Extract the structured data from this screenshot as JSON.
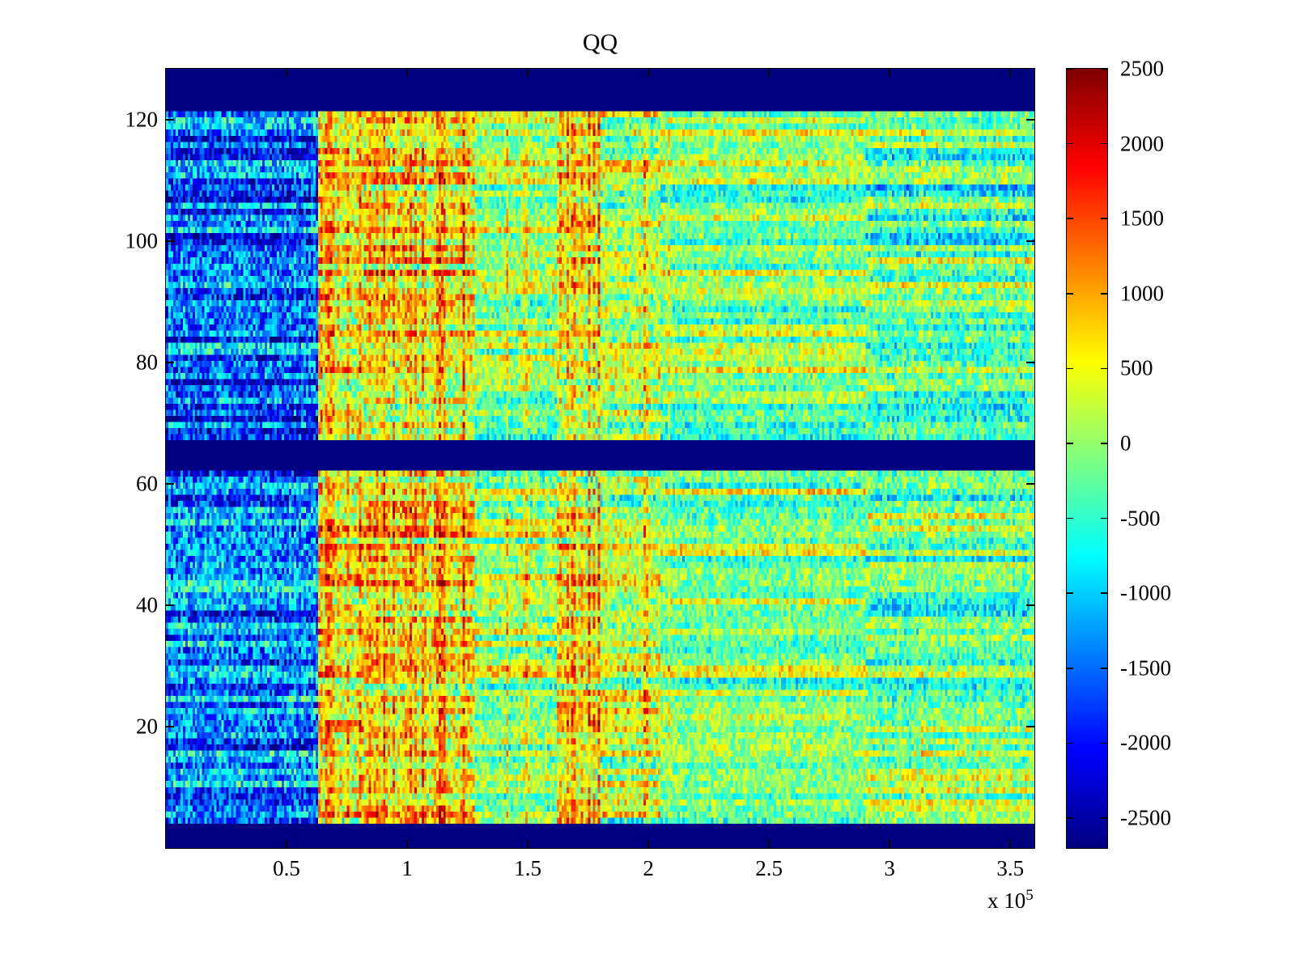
{
  "chart_data": {
    "type": "heatmap",
    "title": "QQ",
    "xlabel": "",
    "ylabel": "",
    "x_scale_label": {
      "prefix": "x 10",
      "exponent": "5"
    },
    "xlim": [
      0,
      360000
    ],
    "ylim": [
      0,
      128.4
    ],
    "clim": [
      -2700,
      2500
    ],
    "colormap": "jet",
    "legend": "none",
    "grid": false,
    "x_ticks": [
      {
        "value": 50000,
        "label": "0.5"
      },
      {
        "value": 100000,
        "label": "1"
      },
      {
        "value": 150000,
        "label": "1.5"
      },
      {
        "value": 200000,
        "label": "2"
      },
      {
        "value": 250000,
        "label": "2.5"
      },
      {
        "value": 300000,
        "label": "3"
      },
      {
        "value": 350000,
        "label": "3.5"
      }
    ],
    "y_ticks": [
      {
        "value": 20,
        "label": "20"
      },
      {
        "value": 40,
        "label": "40"
      },
      {
        "value": 60,
        "label": "60"
      },
      {
        "value": 80,
        "label": "80"
      },
      {
        "value": 100,
        "label": "100"
      },
      {
        "value": 120,
        "label": "120"
      }
    ],
    "colorbar_ticks": [
      {
        "value": 2500,
        "label": "2500"
      },
      {
        "value": 2000,
        "label": "2000"
      },
      {
        "value": 1500,
        "label": "1500"
      },
      {
        "value": 1000,
        "label": "1000"
      },
      {
        "value": 500,
        "label": "500"
      },
      {
        "value": 0,
        "label": "0"
      },
      {
        "value": -500,
        "label": "-500"
      },
      {
        "value": -1000,
        "label": "-1000"
      },
      {
        "value": -1500,
        "label": "-1500"
      },
      {
        "value": -2000,
        "label": "-2000"
      },
      {
        "value": -2500,
        "label": "-2500"
      }
    ],
    "solid_low_bands_y": [
      [
        0,
        3.7
      ],
      [
        61.7,
        67.1
      ],
      [
        121.7,
        128.4
      ]
    ],
    "x_regions": [
      {
        "x": [
          0,
          63000
        ],
        "base": -1400,
        "noise": 850,
        "row_variation": 650,
        "col_variation": 120,
        "spike_prob": 0.015,
        "spike_amp": 400
      },
      {
        "x": [
          63000,
          82000
        ],
        "base": 500,
        "noise": 800,
        "row_variation": 500,
        "col_variation": 200,
        "spike_prob": 0.3,
        "spike_amp": 800
      },
      {
        "x": [
          82000,
          128000
        ],
        "base": 600,
        "noise": 800,
        "row_variation": 550,
        "col_variation": 200,
        "spike_prob": 0.18,
        "spike_amp": 700
      },
      {
        "x": [
          128000,
          162000
        ],
        "base": 100,
        "noise": 650,
        "row_variation": 450,
        "col_variation": 150,
        "spike_prob": 0.04,
        "spike_amp": 450
      },
      {
        "x": [
          162000,
          180000
        ],
        "base": 350,
        "noise": 750,
        "row_variation": 500,
        "col_variation": 180,
        "spike_prob": 0.22,
        "spike_amp": 650
      },
      {
        "x": [
          180000,
          205000
        ],
        "base": 250,
        "noise": 700,
        "row_variation": 600,
        "col_variation": 160,
        "spike_prob": 0.1,
        "spike_amp": 550
      },
      {
        "x": [
          205000,
          290000
        ],
        "base": 0,
        "noise": 600,
        "row_variation": 480,
        "col_variation": 130,
        "spike_prob": 0.02,
        "spike_amp": 400
      },
      {
        "x": [
          290000,
          360001
        ],
        "base": -200,
        "noise": 650,
        "row_variation": 620,
        "col_variation": 130,
        "spike_prob": 0.02,
        "spike_amp": 450
      }
    ],
    "texture": {
      "cols": 360,
      "rows": 128,
      "seed": 1337,
      "row_variation": 400
    },
    "colors": {
      "background": "#ffffff",
      "axis_line": "#000000",
      "band_low": "#00008f",
      "colormap_max": "#800000"
    }
  }
}
